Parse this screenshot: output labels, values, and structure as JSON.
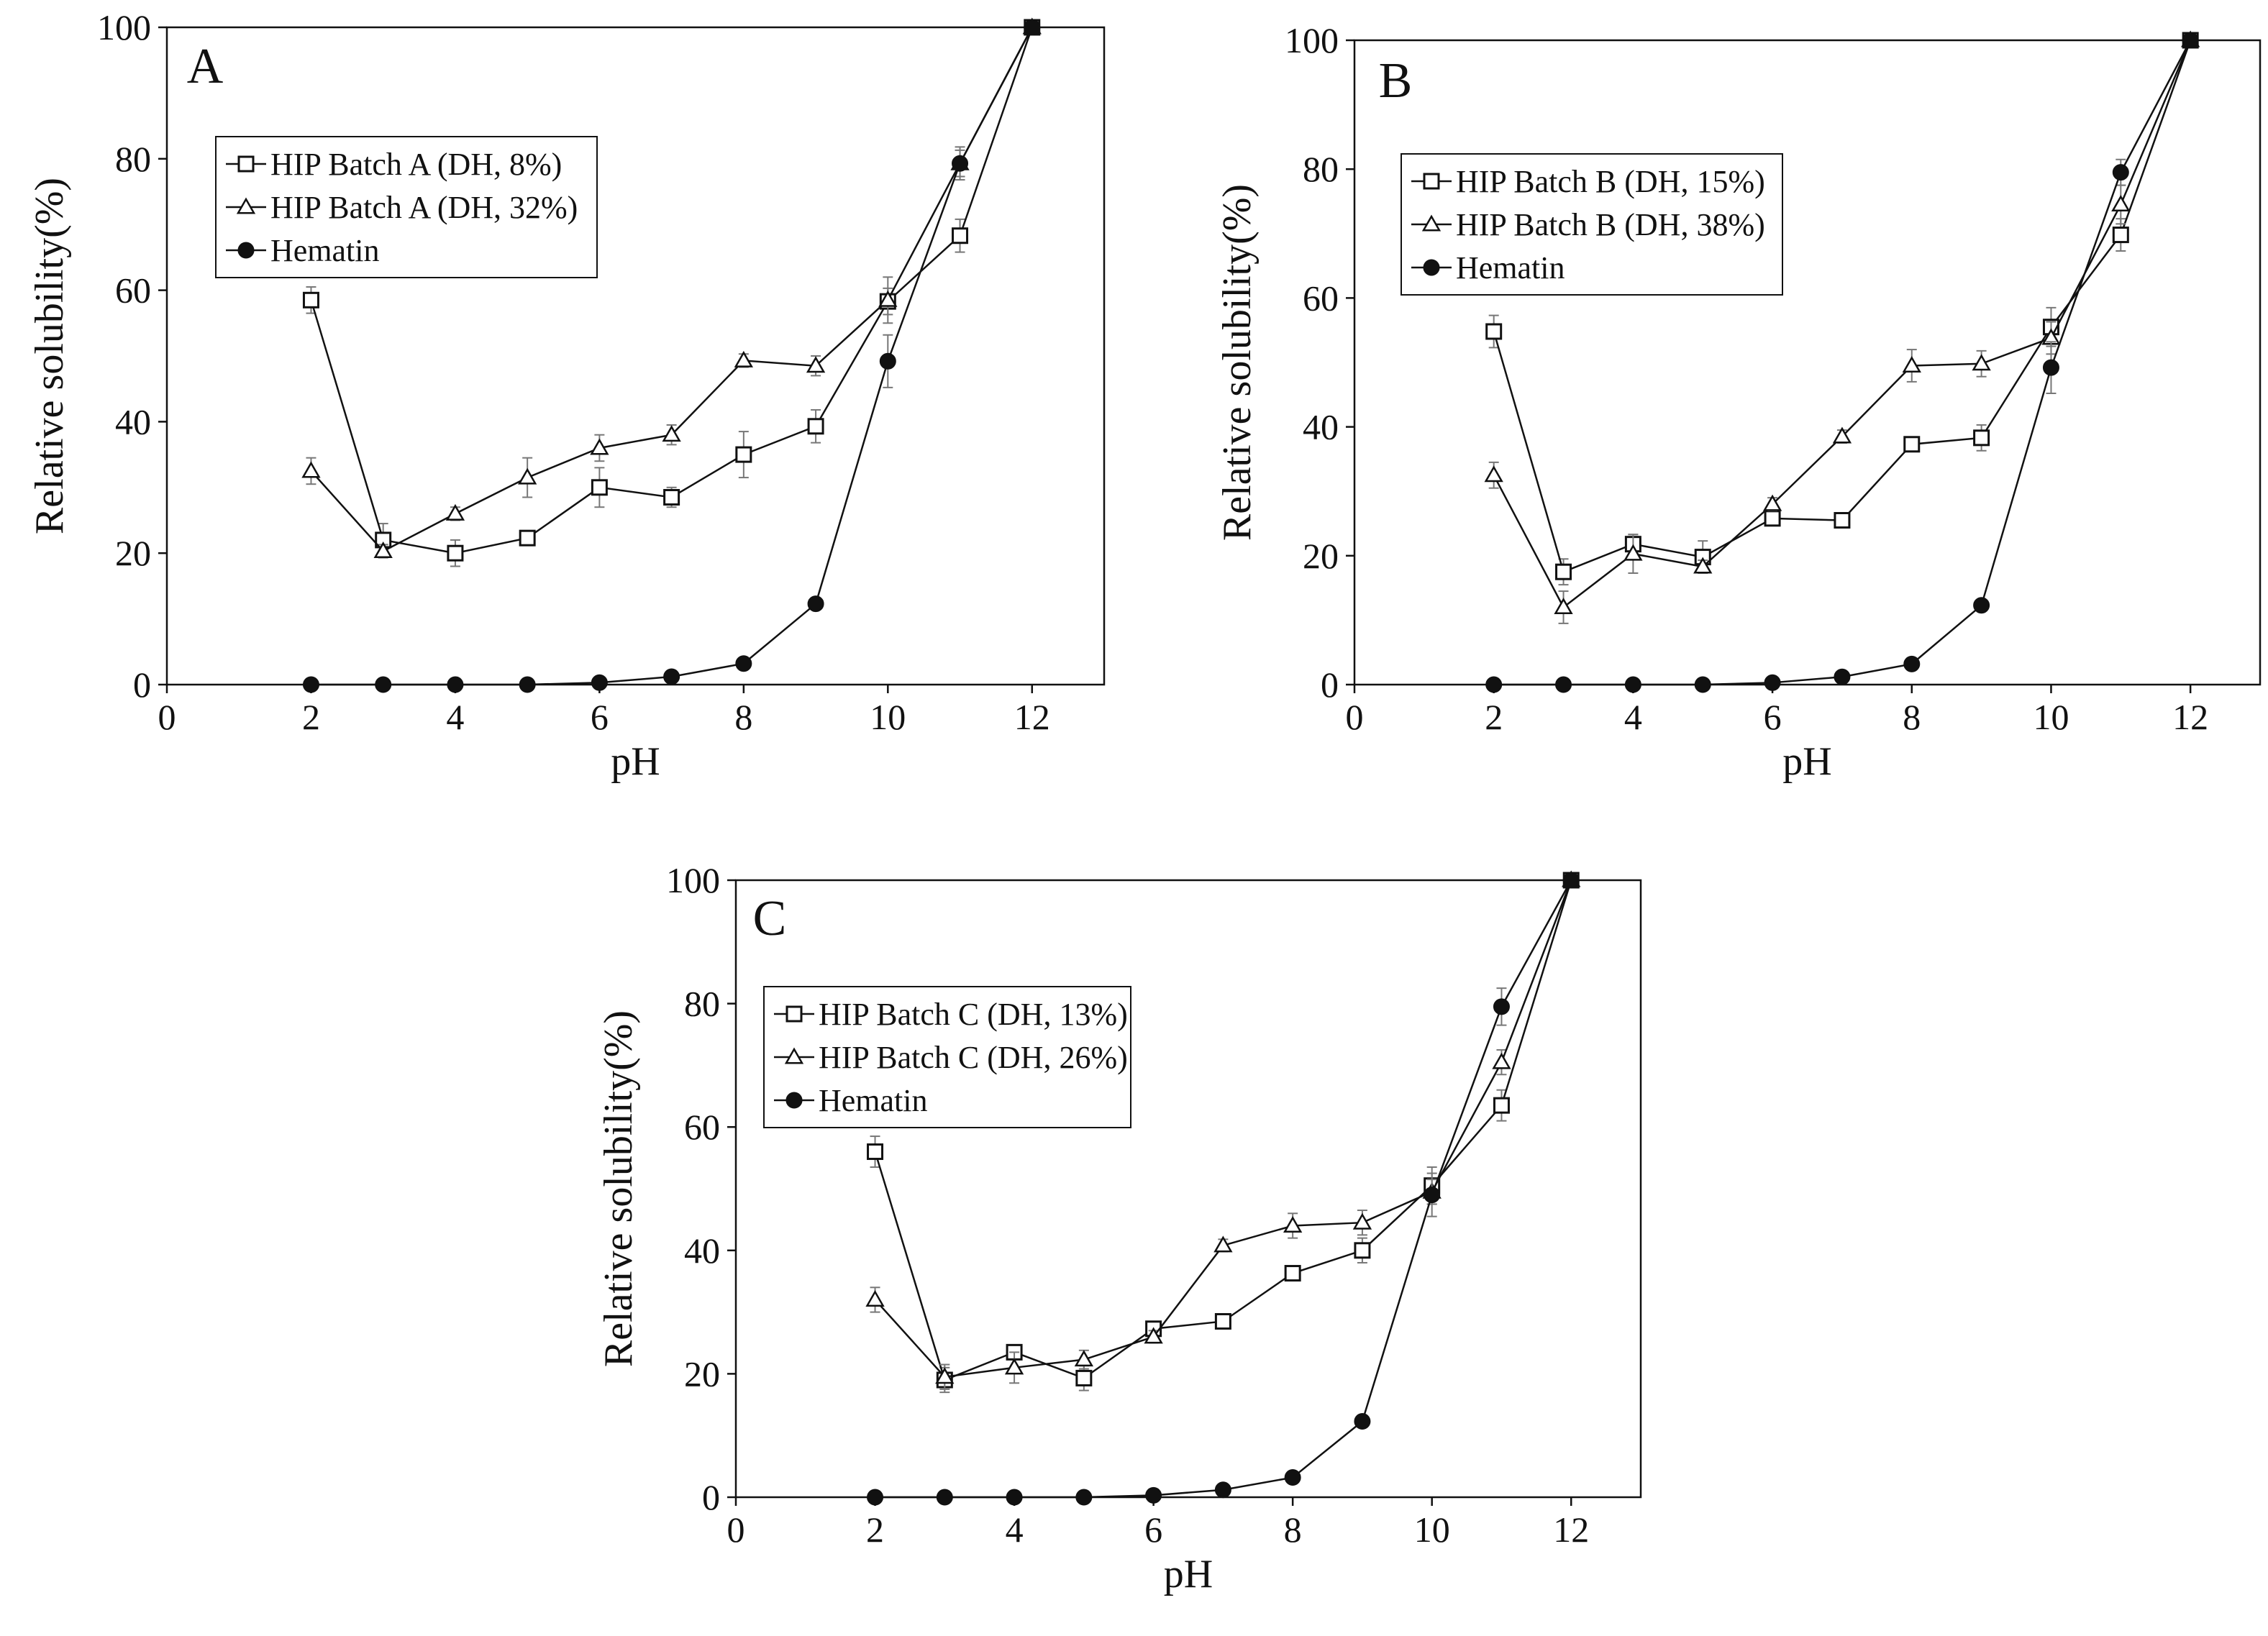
{
  "colors": {
    "ink": "#111111",
    "errorbar": "#777777",
    "marker_fill": "#ffffff"
  },
  "chart_data": [
    {
      "type": "line",
      "panel_label": "A",
      "xlabel": "pH",
      "ylabel": "Relative solubility(%)",
      "xlim": [
        0,
        13
      ],
      "ylim": [
        0,
        100
      ],
      "xticks": [
        "0",
        "2",
        "4",
        "6",
        "8",
        "10",
        "12"
      ],
      "yticks": [
        "0",
        "20",
        "40",
        "60",
        "80",
        "100"
      ],
      "legend_position": "top-left",
      "series": [
        {
          "name": "HIP Batch A (DH, 8%)",
          "marker": "square",
          "x": [
            2,
            3,
            4,
            5,
            6,
            7,
            8,
            9,
            10,
            11,
            12
          ],
          "y": [
            58.5,
            22,
            20,
            22.3,
            30,
            28.5,
            35,
            39.3,
            58.3,
            68.3,
            100
          ],
          "err": [
            2,
            2.5,
            2,
            1,
            3,
            1.5,
            3.5,
            2.5,
            2,
            2.5,
            0
          ]
        },
        {
          "name": "HIP Batch A (DH, 32%)",
          "marker": "triangle",
          "x": [
            2,
            3,
            4,
            5,
            6,
            7,
            8,
            9,
            10,
            11,
            12
          ],
          "y": [
            32.5,
            20.3,
            26,
            31.5,
            36,
            38,
            49.3,
            48.5,
            58.5,
            79.3,
            100
          ],
          "err": [
            2,
            1,
            1,
            3,
            2,
            1.5,
            1,
            1.5,
            3.5,
            2.5,
            0
          ]
        },
        {
          "name": "Hematin",
          "marker": "filled-circle",
          "x": [
            2,
            3,
            4,
            5,
            6,
            7,
            8,
            9,
            10,
            11,
            12
          ],
          "y": [
            0,
            0,
            0,
            0,
            0.3,
            1.2,
            3.2,
            12.3,
            49.2,
            79.3,
            100
          ],
          "err": [
            0,
            0,
            0,
            0,
            0,
            0,
            0,
            0,
            4,
            2,
            0
          ]
        }
      ]
    },
    {
      "type": "line",
      "panel_label": "B",
      "xlabel": "pH",
      "ylabel": "Relative solubility(%)",
      "xlim": [
        0,
        13
      ],
      "ylim": [
        0,
        100
      ],
      "xticks": [
        "0",
        "2",
        "4",
        "6",
        "8",
        "10",
        "12"
      ],
      "yticks": [
        "0",
        "20",
        "40",
        "60",
        "80",
        "100"
      ],
      "legend_position": "top-left",
      "series": [
        {
          "name": "HIP Batch B (DH, 15%)",
          "marker": "square",
          "x": [
            2,
            3,
            4,
            5,
            6,
            7,
            8,
            9,
            10,
            11,
            12
          ],
          "y": [
            54.8,
            17.5,
            21.8,
            19.8,
            25.8,
            25.5,
            37.3,
            38.3,
            55.5,
            69.8,
            100
          ],
          "err": [
            2.5,
            2,
            1.5,
            2.5,
            1,
            1,
            1,
            2,
            3,
            2.5,
            0
          ]
        },
        {
          "name": "HIP Batch B (DH, 38%)",
          "marker": "triangle",
          "x": [
            2,
            3,
            4,
            5,
            6,
            7,
            8,
            9,
            10,
            11,
            12
          ],
          "y": [
            32.5,
            12,
            20.3,
            18.3,
            28,
            38.5,
            49.5,
            49.8,
            53.8,
            74.5,
            100
          ],
          "err": [
            2,
            2.5,
            3,
            1,
            1,
            1,
            2.5,
            2,
            2.5,
            3,
            0
          ]
        },
        {
          "name": "Hematin",
          "marker": "filled-circle",
          "x": [
            2,
            3,
            4,
            5,
            6,
            7,
            8,
            9,
            10,
            11,
            12
          ],
          "y": [
            0,
            0,
            0,
            0,
            0.3,
            1.2,
            3.2,
            12.3,
            49.2,
            79.5,
            100
          ],
          "err": [
            0,
            0,
            0,
            0,
            0,
            0,
            0,
            0,
            4,
            2,
            0
          ]
        }
      ]
    },
    {
      "type": "line",
      "panel_label": "C",
      "xlabel": "pH",
      "ylabel": "Relative solubility(%)",
      "xlim": [
        0,
        13
      ],
      "ylim": [
        0,
        100
      ],
      "xticks": [
        "0",
        "2",
        "4",
        "6",
        "8",
        "10",
        "12"
      ],
      "yticks": [
        "0",
        "20",
        "40",
        "60",
        "80",
        "100"
      ],
      "legend_position": "top-left",
      "series": [
        {
          "name": "HIP Batch C (DH, 13%)",
          "marker": "square",
          "x": [
            2,
            3,
            4,
            5,
            6,
            7,
            8,
            9,
            10,
            11,
            12
          ],
          "y": [
            56,
            19,
            23.5,
            19.3,
            27.3,
            28.5,
            36.3,
            40,
            50.5,
            63.5,
            100
          ],
          "err": [
            2.5,
            2,
            1,
            2,
            1,
            1,
            1,
            2,
            3,
            2.5,
            0
          ]
        },
        {
          "name": "HIP Batch C (DH, 26%)",
          "marker": "triangle",
          "x": [
            2,
            3,
            4,
            5,
            6,
            7,
            8,
            9,
            10,
            11,
            12
          ],
          "y": [
            32,
            19.5,
            21,
            22.3,
            26,
            40.8,
            44,
            44.5,
            49.5,
            70.5,
            100
          ],
          "err": [
            2,
            2,
            2.5,
            1.5,
            1,
            1,
            2,
            2,
            2,
            2,
            0
          ]
        },
        {
          "name": "Hematin",
          "marker": "filled-circle",
          "x": [
            2,
            3,
            4,
            5,
            6,
            7,
            8,
            9,
            10,
            11,
            12
          ],
          "y": [
            0,
            0,
            0,
            0,
            0.3,
            1.2,
            3.2,
            12.3,
            49,
            79.5,
            100
          ],
          "err": [
            0,
            0,
            0,
            0,
            0,
            0,
            0,
            0,
            3.5,
            3,
            0
          ]
        }
      ]
    }
  ]
}
